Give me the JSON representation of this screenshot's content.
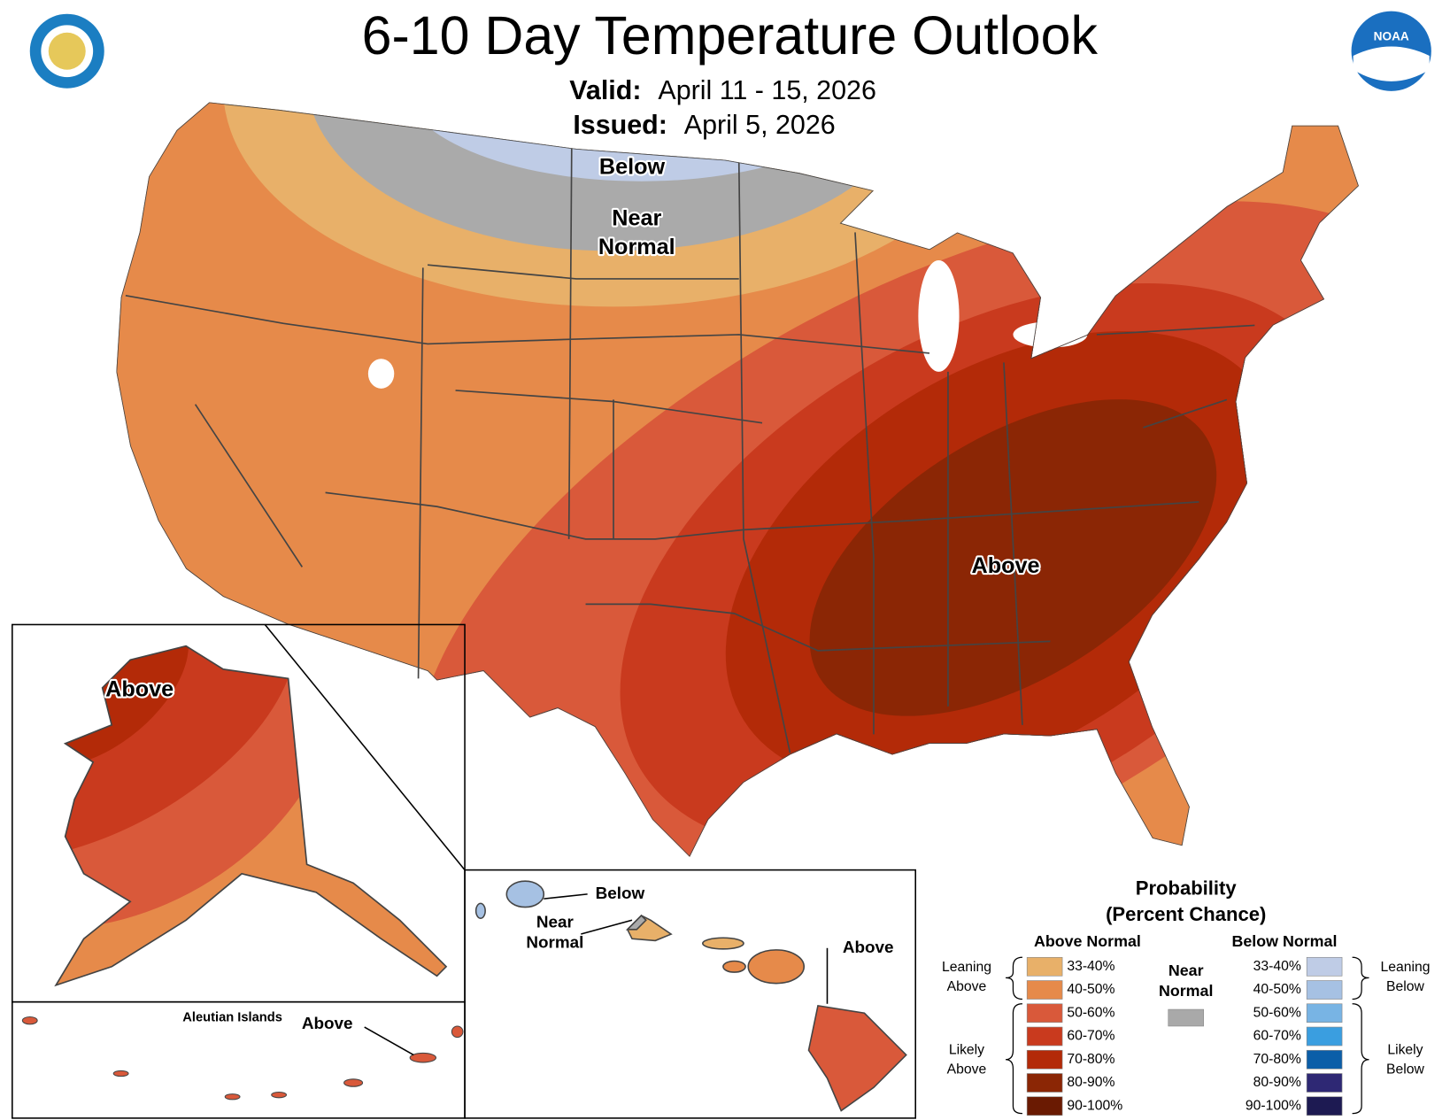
{
  "header": {
    "title": "6-10 Day Temperature Outlook",
    "valid_label": "Valid:",
    "valid": "April 11 - 15, 2026",
    "issued_label": "Issued:",
    "issued": "April 5, 2026",
    "noaa_logo": "NOAA"
  },
  "map_labels": {
    "conus": [
      {
        "lines": [
          "Below"
        ]
      },
      {
        "lines": [
          "Near",
          "Normal"
        ]
      },
      {
        "lines": [
          "Above"
        ]
      }
    ],
    "alaska": [
      {
        "lines": [
          "Above"
        ]
      }
    ],
    "aleutians": {
      "title": "Aleutian Islands",
      "label": "Above"
    },
    "hawaii": [
      {
        "lines": [
          "Below"
        ]
      },
      {
        "lines": [
          "Near",
          "Normal"
        ]
      },
      {
        "lines": [
          "Above"
        ]
      }
    ]
  },
  "legend": {
    "title": [
      "Probability",
      "(Percent Chance)"
    ],
    "above_heading": "Above Normal",
    "below_heading": "Below Normal",
    "near": {
      "lines": [
        "Near",
        "Normal"
      ],
      "color": "#a9a9a9"
    },
    "above": [
      {
        "label": "33-40%",
        "color": "#e8b069"
      },
      {
        "label": "40-50%",
        "color": "#e68a4a"
      },
      {
        "label": "50-60%",
        "color": "#d9593a"
      },
      {
        "label": "60-70%",
        "color": "#c93a1e"
      },
      {
        "label": "70-80%",
        "color": "#b32a08"
      },
      {
        "label": "80-90%",
        "color": "#8b2605"
      },
      {
        "label": "90-100%",
        "color": "#6a1a02"
      }
    ],
    "below": [
      {
        "label": "33-40%",
        "color": "#bfcce6"
      },
      {
        "label": "40-50%",
        "color": "#a6c1e3"
      },
      {
        "label": "50-60%",
        "color": "#78b4e4"
      },
      {
        "label": "60-70%",
        "color": "#3a9ee0"
      },
      {
        "label": "70-80%",
        "color": "#0b5ea8"
      },
      {
        "label": "80-90%",
        "color": "#2e2874"
      },
      {
        "label": "90-100%",
        "color": "#1d1a52"
      }
    ],
    "brackets": {
      "leaning_above": [
        "Leaning",
        "Above"
      ],
      "likely_above": [
        "Likely",
        "Above"
      ],
      "leaning_below": [
        "Leaning",
        "Below"
      ],
      "likely_below": [
        "Likely",
        "Below"
      ]
    }
  }
}
